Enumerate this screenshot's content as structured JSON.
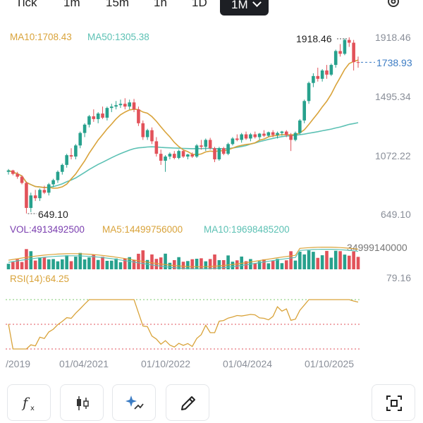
{
  "timeframes": {
    "tabs": [
      "Tick",
      "1m",
      "15m",
      "1h",
      "1D"
    ],
    "active": "1M"
  },
  "main_chart": {
    "ma10_label": "MA10:1708.43",
    "ma50_label": "MA50:1305.38",
    "y_axis_labels": [
      "1918.46",
      "1495.34",
      "1072.22",
      "649.10"
    ],
    "current_price": "1738.93",
    "high_label": "1918.46",
    "low_label": "649.10",
    "colors": {
      "up": "#27a18d",
      "down": "#e2525a",
      "ma10": "#d9a33a",
      "ma50": "#5cc1b4",
      "price_tag": "#3c7cc4"
    }
  },
  "volume": {
    "vol_label": "VOL:4913492500",
    "ma5_label": "MA5:14499756000",
    "ma10_label": "MA10:19698485200",
    "max_label": "34999140000"
  },
  "rsi": {
    "label": "RSI(14):64.25",
    "max_label": "79.16"
  },
  "x_axis": {
    "dates": [
      "/2019",
      "01/04/2021",
      "01/10/2022",
      "01/04/2024",
      "01/10/2025"
    ]
  },
  "tools": {
    "icons": [
      "function-icon",
      "candlestick-icon",
      "ai-sparkle-icon",
      "pencil-icon",
      "screenshot-icon"
    ]
  },
  "chart_data": {
    "type": "candlestick",
    "title": "",
    "interval": "1M",
    "y_range": [
      649.1,
      1918.46
    ],
    "high": 1918.46,
    "low": 649.1,
    "last": 1738.93,
    "ma10_last": 1708.43,
    "ma50_last": 1305.38,
    "candles_ohlc": [
      [
        950,
        970,
        930,
        960
      ],
      [
        960,
        965,
        925,
        935
      ],
      [
        935,
        950,
        900,
        915
      ],
      [
        915,
        925,
        860,
        870
      ],
      [
        870,
        880,
        650,
        690
      ],
      [
        690,
        800,
        660,
        780
      ],
      [
        780,
        820,
        740,
        760
      ],
      [
        760,
        830,
        740,
        820
      ],
      [
        820,
        850,
        790,
        800
      ],
      [
        800,
        870,
        780,
        860
      ],
      [
        860,
        900,
        840,
        890
      ],
      [
        890,
        960,
        870,
        950
      ],
      [
        950,
        1010,
        930,
        1000
      ],
      [
        1000,
        1080,
        980,
        1070
      ],
      [
        1070,
        1120,
        1040,
        1060
      ],
      [
        1060,
        1150,
        1040,
        1140
      ],
      [
        1140,
        1240,
        1120,
        1230
      ],
      [
        1230,
        1300,
        1200,
        1290
      ],
      [
        1290,
        1360,
        1270,
        1350
      ],
      [
        1350,
        1400,
        1310,
        1330
      ],
      [
        1330,
        1380,
        1300,
        1370
      ],
      [
        1370,
        1420,
        1330,
        1340
      ],
      [
        1340,
        1420,
        1320,
        1410
      ],
      [
        1410,
        1440,
        1380,
        1420
      ],
      [
        1420,
        1460,
        1400,
        1430
      ],
      [
        1430,
        1470,
        1410,
        1440
      ],
      [
        1440,
        1480,
        1400,
        1420
      ],
      [
        1420,
        1470,
        1400,
        1450
      ],
      [
        1450,
        1475,
        1380,
        1400
      ],
      [
        1400,
        1420,
        1280,
        1300
      ],
      [
        1300,
        1320,
        1180,
        1200
      ],
      [
        1200,
        1260,
        1180,
        1250
      ],
      [
        1250,
        1270,
        1150,
        1170
      ],
      [
        1170,
        1200,
        1060,
        1080
      ],
      [
        1080,
        1110,
        1000,
        1030
      ],
      [
        1030,
        1070,
        950,
        1060
      ],
      [
        1060,
        1090,
        1040,
        1080
      ],
      [
        1080,
        1100,
        1040,
        1050
      ],
      [
        1050,
        1110,
        1040,
        1100
      ],
      [
        1100,
        1110,
        1050,
        1060
      ],
      [
        1060,
        1080,
        1040,
        1075
      ],
      [
        1075,
        1090,
        1050,
        1060
      ],
      [
        1060,
        1150,
        1050,
        1140
      ],
      [
        1140,
        1180,
        1110,
        1130
      ],
      [
        1130,
        1190,
        1100,
        1180
      ],
      [
        1180,
        1195,
        1110,
        1120
      ],
      [
        1120,
        1130,
        1020,
        1040
      ],
      [
        1040,
        1130,
        1030,
        1120
      ],
      [
        1120,
        1130,
        1070,
        1080
      ],
      [
        1080,
        1160,
        1070,
        1150
      ],
      [
        1150,
        1200,
        1140,
        1190
      ],
      [
        1190,
        1220,
        1170,
        1180
      ],
      [
        1180,
        1230,
        1160,
        1220
      ],
      [
        1220,
        1240,
        1180,
        1190
      ],
      [
        1190,
        1230,
        1170,
        1220
      ],
      [
        1220,
        1240,
        1190,
        1200
      ],
      [
        1200,
        1230,
        1180,
        1225
      ],
      [
        1225,
        1250,
        1200,
        1210
      ],
      [
        1210,
        1240,
        1200,
        1235
      ],
      [
        1235,
        1250,
        1200,
        1215
      ],
      [
        1215,
        1240,
        1190,
        1230
      ],
      [
        1230,
        1245,
        1210,
        1240
      ],
      [
        1240,
        1250,
        1200,
        1215
      ],
      [
        1215,
        1230,
        1100,
        1180
      ],
      [
        1180,
        1240,
        1170,
        1230
      ],
      [
        1230,
        1330,
        1220,
        1320
      ],
      [
        1320,
        1470,
        1300,
        1460
      ],
      [
        1460,
        1600,
        1440,
        1590
      ],
      [
        1590,
        1660,
        1560,
        1640
      ],
      [
        1640,
        1700,
        1600,
        1620
      ],
      [
        1620,
        1690,
        1600,
        1680
      ],
      [
        1680,
        1720,
        1620,
        1650
      ],
      [
        1650,
        1730,
        1640,
        1720
      ],
      [
        1720,
        1830,
        1700,
        1820
      ],
      [
        1820,
        1870,
        1780,
        1800
      ],
      [
        1800,
        1910,
        1790,
        1900
      ],
      [
        1900,
        1918.46,
        1850,
        1880
      ],
      [
        1880,
        1900,
        1680,
        1740
      ],
      [
        1740,
        1780,
        1700,
        1738.93
      ]
    ],
    "rsi_range": [
      20,
      79.16
    ],
    "volume_max": 34999140000
  }
}
